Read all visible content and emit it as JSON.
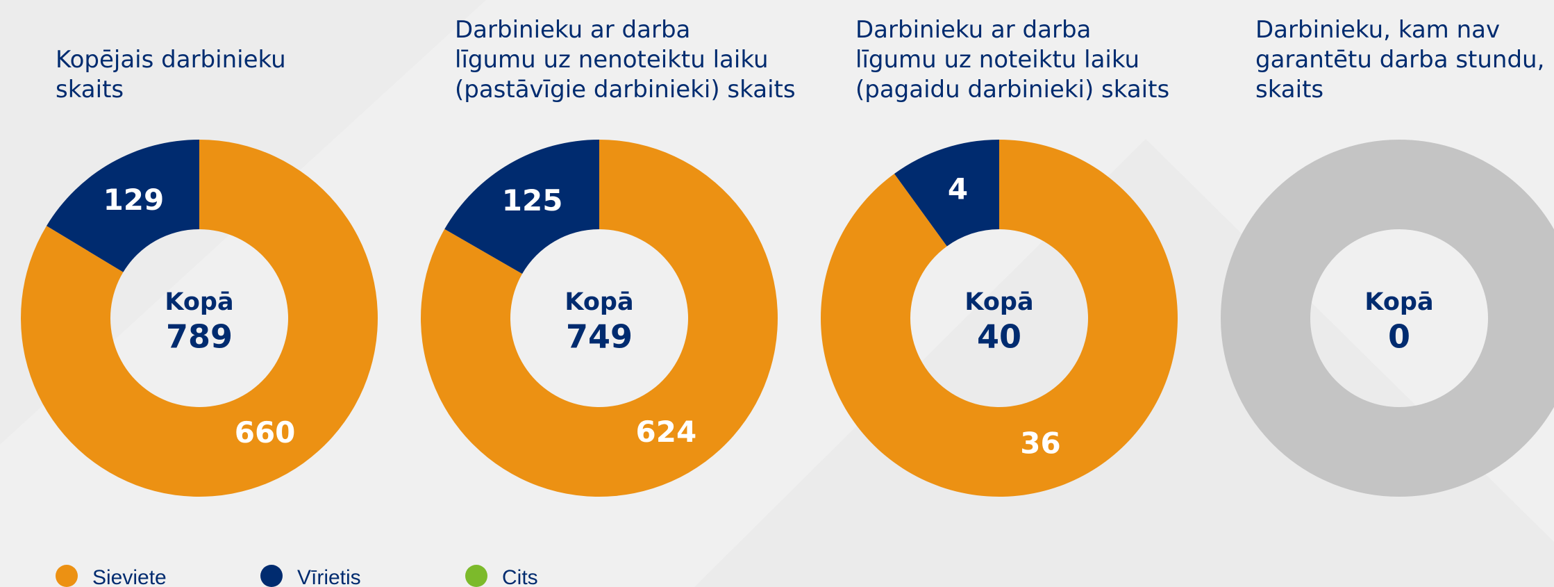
{
  "chart_data": [
    {
      "type": "donut",
      "title": [
        "Kopējais darbinieku",
        "skaits"
      ],
      "center_label": "Kopā",
      "total": 789,
      "values": [
        660,
        129,
        0
      ]
    },
    {
      "type": "donut",
      "title": [
        "Darbinieku ar darba",
        "līgumu uz nenoteiktu laiku",
        "(pastāvīgie darbinieki) skaits"
      ],
      "center_label": "Kopā",
      "total": 749,
      "values": [
        624,
        125,
        0
      ]
    },
    {
      "type": "donut",
      "title": [
        "Darbinieku ar darba",
        "līgumu uz noteiktu laiku",
        "(pagaidu darbinieki) skaits"
      ],
      "center_label": "Kopā",
      "total": 40,
      "values": [
        36,
        4,
        0
      ]
    },
    {
      "type": "donut",
      "title": [
        "Darbinieku, kam nav",
        "garantētu darba stundu,",
        "skaits"
      ],
      "center_label": "Kopā",
      "total": 0,
      "values": [
        0,
        0,
        0
      ],
      "empty_color": "#c4c4c4"
    }
  ],
  "legend": {
    "categories": [
      "Sieviete",
      "Vīrietis",
      "Cits"
    ],
    "colors": [
      "#ec9113",
      "#002b6f",
      "#7cba2b"
    ]
  }
}
